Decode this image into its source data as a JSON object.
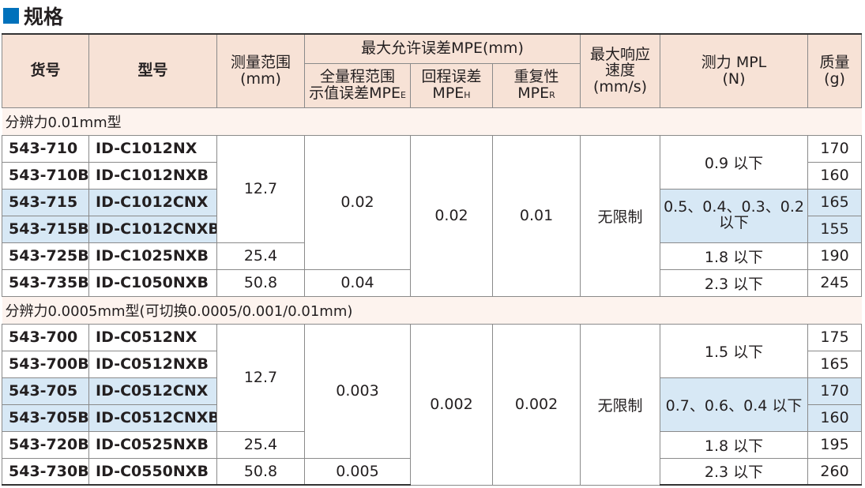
{
  "title": "规格",
  "colors": {
    "accent": "#0071bb",
    "header_bg": "#f7e2d6",
    "section_bg": "#fdf3ee",
    "highlight_bg": "#d7e8f5"
  },
  "headers": {
    "item_no": "货号",
    "model": "型号",
    "range": "测量范围",
    "range_unit": "(mm)",
    "mpe": "最大允许误差MPE(mm)",
    "mpe_full": "全量程范围",
    "mpe_full_2": "示值误差MPE",
    "mpe_full_sub": "E",
    "mpe_retrace": "回程误差",
    "mpe_retrace_2": "MPE",
    "mpe_retrace_sub": "H",
    "mpe_repeat": "重复性",
    "mpe_repeat_2": "MPE",
    "mpe_repeat_sub": "R",
    "speed": "最大响应",
    "speed_2": "速度",
    "speed_unit": "(mm/s)",
    "force": "测力 MPL",
    "force_unit": "(N)",
    "mass": "质量",
    "mass_unit": "(g)"
  },
  "sections": [
    {
      "label": "分辨力0.01mm型",
      "rows": [
        {
          "item": "543-710",
          "model": "ID-C1012NX",
          "mass": "170"
        },
        {
          "item": "543-710B",
          "model": "ID-C1012NXB",
          "mass": "160"
        },
        {
          "item": "543-715",
          "model": "ID-C1012CNX",
          "mass": "165"
        },
        {
          "item": "543-715B",
          "model": "ID-C1012CNXB",
          "mass": "155"
        },
        {
          "item": "543-725B",
          "model": "ID-C1025NXB",
          "mass": "190"
        },
        {
          "item": "543-735B",
          "model": "ID-C1050NXB",
          "mass": "245"
        }
      ],
      "range": [
        "12.7",
        "25.4",
        "50.8"
      ],
      "mpe_full": [
        "0.02",
        "0.04"
      ],
      "mpe_retrace": "0.02",
      "mpe_repeat": "0.01",
      "speed": "无限制",
      "force": [
        "0.9 以下",
        "0.5、0.4、0.3、0.2 以下",
        "1.8 以下",
        "2.3 以下"
      ]
    },
    {
      "label": "分辨力0.0005mm型(可切换0.0005/0.001/0.01mm)",
      "rows": [
        {
          "item": "543-700",
          "model": "ID-C0512NX",
          "mass": "175"
        },
        {
          "item": "543-700B",
          "model": "ID-C0512NXB",
          "mass": "165"
        },
        {
          "item": "543-705",
          "model": "ID-C0512CNX",
          "mass": "170"
        },
        {
          "item": "543-705B",
          "model": "ID-C0512CNXB",
          "mass": "160"
        },
        {
          "item": "543-720B",
          "model": "ID-C0525NXB",
          "mass": "195"
        },
        {
          "item": "543-730B",
          "model": "ID-C0550NXB",
          "mass": "260"
        }
      ],
      "range": [
        "12.7",
        "25.4",
        "50.8"
      ],
      "mpe_full": [
        "0.003",
        "0.005"
      ],
      "mpe_retrace": "0.002",
      "mpe_repeat": "0.002",
      "speed": "无限制",
      "force": [
        "1.5 以下",
        "0.7、0.6、0.4 以下",
        "1.8 以下",
        "2.3 以下"
      ]
    }
  ]
}
